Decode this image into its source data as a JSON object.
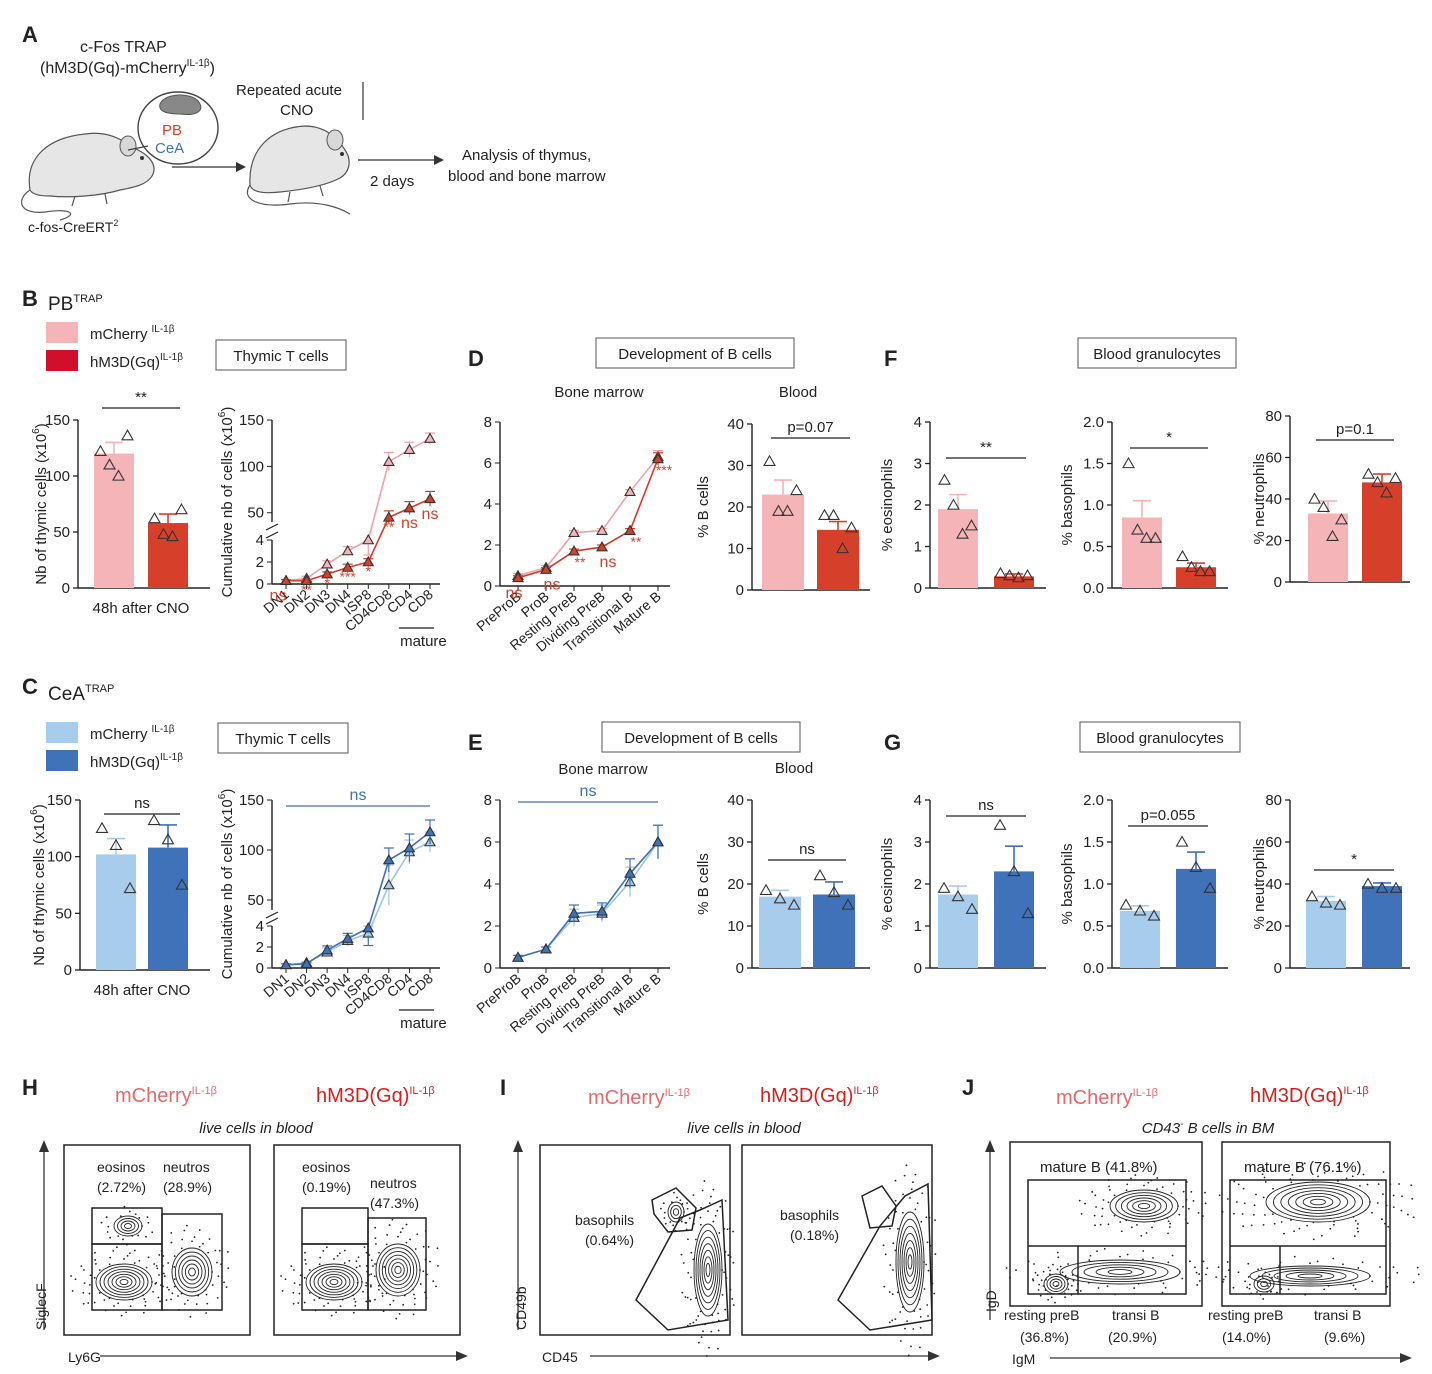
{
  "colors": {
    "pb_ctrl": "#f4b4b8",
    "pb_trt": "#d6402a",
    "pb_ctrl_line": "#f0a0a8",
    "pb_trt_line": "#d63a2a",
    "cea_ctrl": "#a8cdec",
    "cea_trt": "#3f72b8",
    "cea_ctrl_line": "#9cc4ea",
    "cea_trt_line": "#3f6fb5",
    "sig_red": "#d6402a",
    "sig_blue": "#3f72b8",
    "mcherry_text": "#e8676c",
    "hm3d_text": "#d62020"
  },
  "panelA": {
    "letter": "A",
    "title1": "c-Fos TRAP",
    "title2": "(hM3D(Gq)-mCherry",
    "title2_sup": "IL-1β",
    "title2_end": ")",
    "pb": "PB",
    "cea": "CeA",
    "strain": "c-fos-CreERT",
    "strain_sup": "2",
    "step1a": "Repeated acute",
    "step1b": "CNO",
    "days": "2 days",
    "analysis1": "Analysis of thymus,",
    "analysis2": "blood and bone marrow"
  },
  "legendB": {
    "letter": "B",
    "name": "PB",
    "name_sup": "TRAP",
    "ctrl": "mCherry",
    "trt": "hM3D(Gq)",
    "sup": "IL-1β"
  },
  "legendC": {
    "letter": "C",
    "name": "CeA",
    "name_sup": "TRAP",
    "ctrl": "mCherry",
    "trt": "hM3D(Gq)",
    "sup": "IL-1β"
  },
  "titles": {
    "thymicB": "Thymic T cells",
    "thymicC": "Thymic T cells",
    "devD": "Development of B cells",
    "devE": "Development of B cells",
    "granF": "Blood granulocytes",
    "granG": "Blood granulocytes",
    "boneD": "Bone marrow",
    "bloodD": "Blood",
    "boneE": "Bone marrow",
    "bloodE": "Blood",
    "letterD": "D",
    "letterE": "E",
    "letterF": "F",
    "letterG": "G",
    "mature": "mature"
  },
  "chart_data": [
    {
      "id": "B_thymic_count",
      "type": "bar",
      "ylabel": "Nb of thymic cells (x10",
      "ylabel_sup": "6",
      "ylabel_end": ")",
      "xlabel": "48h after CNO",
      "ylim": [
        0,
        150
      ],
      "yticks": [
        0,
        50,
        100,
        150
      ],
      "values": [
        120,
        58
      ],
      "errors": [
        10,
        8
      ],
      "points": [
        [
          122,
          110,
          100,
          136
        ],
        [
          62,
          48,
          46,
          70
        ]
      ],
      "sig": "**"
    },
    {
      "id": "B_thymic_cumulative",
      "type": "line",
      "ylabel": "Cumulative nb of cells (x10",
      "ylabel_sup": "6",
      "ylabel_end": ")",
      "categories": [
        "DN1",
        "DN2",
        "DN3",
        "DN4",
        "ISP8",
        "CD4CD8",
        "CD4",
        "CD8"
      ],
      "ylim_low": [
        0,
        4
      ],
      "yticks_low": [
        0,
        2,
        4
      ],
      "ylim_high": [
        40,
        150
      ],
      "yticks_high": [
        50,
        100,
        150
      ],
      "series": [
        {
          "values": [
            0.3,
            0.5,
            1.8,
            3.0,
            4.0,
            105,
            118,
            130
          ],
          "errors": [
            0.1,
            0.2,
            0.3,
            0.4,
            0.4,
            10,
            8,
            6
          ]
        },
        {
          "values": [
            0.3,
            0.3,
            0.9,
            1.5,
            2.0,
            45,
            55,
            65
          ],
          "errors": [
            0.1,
            0.1,
            0.2,
            0.3,
            0.3,
            7,
            7,
            8
          ]
        }
      ],
      "annotations": [
        "ns",
        "**",
        "*",
        "***",
        "*",
        "**",
        "ns",
        "ns"
      ]
    },
    {
      "id": "D_bone_marrow",
      "type": "line",
      "categories": [
        "PreProB",
        "ProB",
        "Resting PreB",
        "Dividing PreB",
        "Transitional B",
        "Mature B"
      ],
      "ylim": [
        0,
        8
      ],
      "yticks": [
        0,
        2,
        4,
        6,
        8
      ],
      "series": [
        {
          "values": [
            0.5,
            0.9,
            2.6,
            2.7,
            4.6,
            6.3
          ],
          "errors": [
            0.1,
            0.1,
            0.1,
            0.1,
            0.1,
            0.3
          ]
        },
        {
          "values": [
            0.4,
            0.8,
            1.7,
            1.9,
            2.7,
            6.2
          ],
          "errors": [
            0.1,
            0.1,
            0.1,
            0.1,
            0.1,
            0.3
          ]
        }
      ],
      "annotations": [
        "ns",
        "ns",
        "**",
        "ns",
        "**",
        "***"
      ]
    },
    {
      "id": "D_blood",
      "type": "bar",
      "ylabel": "% B cells",
      "ylim": [
        0,
        40
      ],
      "yticks": [
        0,
        10,
        20,
        30,
        40
      ],
      "values": [
        23,
        14.5
      ],
      "errors": [
        3.5,
        2
      ],
      "points": [
        [
          31,
          19,
          19,
          24
        ],
        [
          18,
          18,
          10,
          15
        ]
      ],
      "sig": "p=0.07"
    },
    {
      "id": "F_eosinophils",
      "type": "bar",
      "ylabel": "% eosinophils",
      "ylim": [
        0,
        4
      ],
      "yticks": [
        0,
        1,
        2,
        3,
        4
      ],
      "values": [
        1.9,
        0.28
      ],
      "errors": [
        0.35,
        0.06
      ],
      "points": [
        [
          2.6,
          2.0,
          1.3,
          1.5
        ],
        [
          0.35,
          0.3,
          0.25,
          0.3
        ]
      ],
      "sig": "**"
    },
    {
      "id": "F_basophils",
      "type": "bar",
      "ylabel": "% basophils",
      "ylim": [
        0,
        2.0
      ],
      "yticks": [
        0,
        0.5,
        1.0,
        1.5,
        2.0
      ],
      "tick_format": 1,
      "values": [
        0.85,
        0.25
      ],
      "errors": [
        0.2,
        0.05
      ],
      "points": [
        [
          1.5,
          0.7,
          0.6,
          0.6
        ],
        [
          0.38,
          0.25,
          0.2,
          0.2
        ]
      ],
      "sig": "*"
    },
    {
      "id": "F_neutrophils",
      "type": "bar",
      "ylabel": "% neutrophils",
      "ylim": [
        0,
        80
      ],
      "yticks": [
        0,
        20,
        40,
        60,
        80
      ],
      "values": [
        33,
        48
      ],
      "errors": [
        6,
        4
      ],
      "points": [
        [
          40,
          36,
          22,
          30
        ],
        [
          52,
          48,
          43,
          50
        ]
      ],
      "sig": "p=0.1"
    },
    {
      "id": "C_thymic_count",
      "type": "bar",
      "ylabel": "Nb of thymic cells (x10",
      "ylabel_sup": "6",
      "ylabel_end": ")",
      "xlabel": "48h after CNO",
      "ylim": [
        0,
        150
      ],
      "yticks": [
        0,
        50,
        100,
        150
      ],
      "values": [
        102,
        108
      ],
      "errors": [
        14,
        20
      ],
      "points": [
        [
          125,
          110,
          72
        ],
        [
          132,
          115,
          75
        ]
      ],
      "sig": "ns"
    },
    {
      "id": "C_thymic_cumulative",
      "type": "line",
      "ylabel": "Cumulative nb of cells (x10",
      "ylabel_sup": "6",
      "ylabel_end": ")",
      "categories": [
        "DN1",
        "DN2",
        "DN3",
        "DN4",
        "ISP8",
        "CD4CD8",
        "CD4",
        "CD8"
      ],
      "ylim_low": [
        0,
        4
      ],
      "yticks_low": [
        0,
        2,
        4
      ],
      "ylim_high": [
        40,
        150
      ],
      "yticks_high": [
        50,
        100,
        150
      ],
      "series": [
        {
          "values": [
            0.3,
            0.5,
            1.5,
            2.6,
            3.3,
            65,
            98,
            108
          ],
          "errors": [
            0.1,
            0.1,
            0.4,
            0.5,
            0.7,
            20,
            12,
            10
          ]
        },
        {
          "values": [
            0.3,
            0.4,
            1.7,
            2.8,
            3.8,
            90,
            102,
            118
          ],
          "errors": [
            0.1,
            0.1,
            0.4,
            0.5,
            0.7,
            12,
            14,
            12
          ]
        }
      ],
      "sig": "ns"
    },
    {
      "id": "E_bone_marrow",
      "type": "line",
      "categories": [
        "PreProB",
        "ProB",
        "Resting PreB",
        "Dividing PreB",
        "Transitional B",
        "Mature B"
      ],
      "ylim": [
        0,
        8
      ],
      "yticks": [
        0,
        2,
        4,
        6,
        8
      ],
      "series": [
        {
          "values": [
            0.5,
            0.9,
            2.4,
            2.6,
            4.1,
            6.0
          ],
          "errors": [
            0.1,
            0.1,
            0.4,
            0.4,
            0.7,
            0.8
          ]
        },
        {
          "values": [
            0.5,
            0.9,
            2.6,
            2.7,
            4.5,
            6.0
          ],
          "errors": [
            0.1,
            0.1,
            0.4,
            0.4,
            0.7,
            0.8
          ]
        }
      ],
      "sig": "ns"
    },
    {
      "id": "E_blood",
      "type": "bar",
      "ylabel": "% B cells",
      "ylim": [
        0,
        40
      ],
      "yticks": [
        0,
        10,
        20,
        30,
        40
      ],
      "values": [
        17,
        17.5
      ],
      "errors": [
        1.5,
        3
      ],
      "points": [
        [
          18.5,
          16.5,
          15
        ],
        [
          22,
          18,
          15
        ]
      ],
      "sig": "ns"
    },
    {
      "id": "G_eosinophils",
      "type": "bar",
      "ylabel": "% eosinophils",
      "ylim": [
        0,
        4
      ],
      "yticks": [
        0,
        1,
        2,
        3,
        4
      ],
      "values": [
        1.75,
        2.3
      ],
      "errors": [
        0.2,
        0.6
      ],
      "points": [
        [
          1.9,
          1.7,
          1.4
        ],
        [
          3.4,
          2.3,
          1.3
        ]
      ],
      "sig": "ns"
    },
    {
      "id": "G_basophils",
      "type": "bar",
      "ylabel": "% basophils",
      "ylim": [
        0,
        2.0
      ],
      "yticks": [
        0,
        0.5,
        1.0,
        1.5,
        2.0
      ],
      "tick_format": 1,
      "values": [
        0.68,
        1.18
      ],
      "errors": [
        0.06,
        0.2
      ],
      "points": [
        [
          0.75,
          0.68,
          0.62
        ],
        [
          1.5,
          1.2,
          0.95
        ]
      ],
      "sig": "p=0.055"
    },
    {
      "id": "G_neutrophils",
      "type": "bar",
      "ylabel": "% neutrophils",
      "ylim": [
        0,
        80
      ],
      "yticks": [
        0,
        20,
        40,
        60,
        80
      ],
      "values": [
        32,
        39
      ],
      "errors": [
        2,
        1.5
      ],
      "points": [
        [
          34,
          31,
          30
        ],
        [
          40,
          38,
          38
        ]
      ],
      "sig": "*"
    }
  ],
  "flowH": {
    "letter": "H",
    "ctrl": "mCherry",
    "trt": "hM3D(Gq)",
    "sup": "IL-1β",
    "subtitle": "live cells in blood",
    "ylabel": "SiglecF",
    "xlabel": "Ly6G",
    "left_gate1": "eosinos",
    "left_gate1_pct": "(2.72%)",
    "left_gate2": "neutros",
    "left_gate2_pct": "(28.9%)",
    "right_gate1": "eosinos",
    "right_gate1_pct": "(0.19%)",
    "right_gate2": "neutros",
    "right_gate2_pct": "(47.3%)",
    "eosino_values": [
      2.72,
      0.19
    ],
    "neutro_values": [
      28.9,
      47.3
    ]
  },
  "flowI": {
    "letter": "I",
    "ctrl": "mCherry",
    "trt": "hM3D(Gq)",
    "sup": "IL-1β",
    "subtitle": "live cells in blood",
    "ylabel": "CD49b",
    "xlabel": "CD45",
    "left_gate": "basophils",
    "left_gate_pct": "(0.64%)",
    "right_gate": "basophils",
    "right_gate_pct": "(0.18%)",
    "basophil_values": [
      0.64,
      0.18
    ]
  },
  "flowJ": {
    "letter": "J",
    "ctrl": "mCherry",
    "trt": "hM3D(Gq)",
    "sup": "IL-1β",
    "subtitle": "CD43",
    "subtitle_sup": "-",
    "subtitle_end": " B cells in BM",
    "ylabel": "IgD",
    "xlabel": "IgM",
    "left_mature": "mature B (41.8%)",
    "right_mature": "mature B (76.1%)",
    "left_resting": "resting preB",
    "left_resting_pct": "(36.8%)",
    "left_transi": "transi B",
    "left_transi_pct": "(20.9%)",
    "right_resting": "resting preB",
    "right_resting_pct": "(14.0%)",
    "right_transi": "transi B",
    "right_transi_pct": "(9.6%)",
    "mature_values": [
      41.8,
      76.1
    ],
    "resting_values": [
      36.8,
      14.0
    ],
    "transi_values": [
      20.9,
      9.6
    ]
  }
}
